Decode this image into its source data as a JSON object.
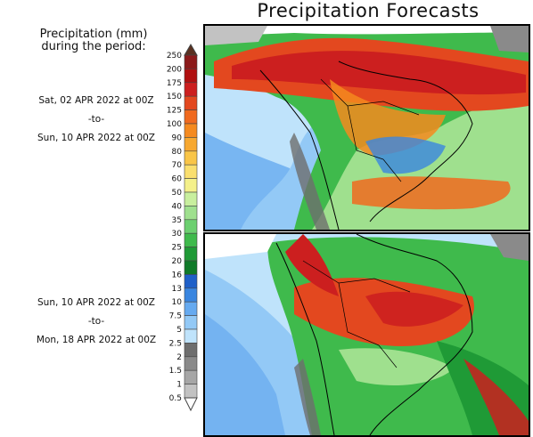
{
  "title": "Precipitation Forecasts",
  "legend": {
    "heading_line1": "Precipitation (mm)",
    "heading_line2": "during the period:",
    "unit": "mm",
    "ticks": [
      "250",
      "200",
      "175",
      "150",
      "125",
      "100",
      "90",
      "80",
      "70",
      "60",
      "50",
      "40",
      "35",
      "30",
      "25",
      "20",
      "16",
      "13",
      "10",
      "7.5",
      "5",
      "2.5",
      "2",
      "1.5",
      "1",
      "0.5"
    ],
    "colors": [
      "#5a3020",
      "#8b1a1a",
      "#b01010",
      "#cc1f1f",
      "#e3481f",
      "#f06a1f",
      "#f58a1f",
      "#f7a830",
      "#f9c548",
      "#fadf6e",
      "#f4f08a",
      "#c8ef9e",
      "#9fe08e",
      "#6cd070",
      "#3fba4c",
      "#1f9a36",
      "#0f7a28",
      "#1f60c8",
      "#3a86e0",
      "#66aaf0",
      "#93c9f6",
      "#bfe3fb",
      "#6e6e6e",
      "#8a8a8a",
      "#a6a6a6",
      "#c2c2c2",
      "#ffffff"
    ]
  },
  "periods": [
    {
      "start": "Sat, 02 APR 2022 at 00Z",
      "sep": "-to-",
      "end": "Sun, 10 APR 2022 at 00Z"
    },
    {
      "start": "Sun, 10 APR 2022 at 00Z",
      "sep": "-to-",
      "end": "Mon, 18 APR 2022 at 00Z"
    }
  ]
}
